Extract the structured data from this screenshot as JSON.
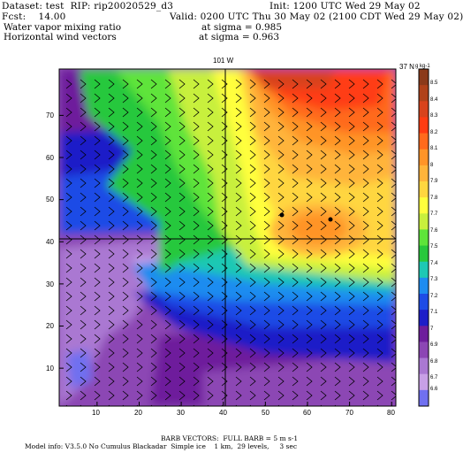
{
  "header": {
    "dataset_label": "Dataset: test  RIP: rip20020529_d3",
    "init_label": "Init: 1200 UTC Wed 29 May 02",
    "fcst_label": "Fcst:    14.00",
    "valid_label": "Valid: 0200 UTC Thu 30 May 02 (2100 CDT Wed 29 May 02)",
    "field1_name": "Water vapor mixing ratio",
    "field1_level": "at sigma = 0.985",
    "field2_name": "Horizontal wind vectors",
    "field2_level": "at sigma = 0.963"
  },
  "map": {
    "lon_line_label": "101 W",
    "lat_line_label": "37 N",
    "x_ticks": [
      "10",
      "20",
      "30",
      "40",
      "50",
      "60",
      "70",
      "80"
    ],
    "y_ticks": [
      "10",
      "20",
      "30",
      "40",
      "50",
      "60",
      "70"
    ]
  },
  "colorbar": {
    "unit_label": "g kg-1",
    "levels": [
      "8.5",
      "8.4",
      "8.3",
      "8.2",
      "8.1",
      "8",
      "7.9",
      "7.8",
      "7.7",
      "7.6",
      "7.5",
      "7.4",
      "7.3",
      "7.2",
      "7.1",
      "7",
      "6.9",
      "6.8",
      "6.7",
      "6.6"
    ],
    "colors": [
      "#8b3a1a",
      "#b0421a",
      "#d8431c",
      "#ff3c12",
      "#ff6a1c",
      "#ff9428",
      "#ffb43a",
      "#ffd640",
      "#ffff3c",
      "#c8f03c",
      "#5ee43a",
      "#28c83c",
      "#1ec8b4",
      "#1e8cf0",
      "#1e4ce6",
      "#1e1ec8",
      "#6e1e9c",
      "#8c46b4",
      "#aa78d2",
      "#c8a0e6",
      "#7070f0"
    ]
  },
  "footer": {
    "barb_label": "BARB VECTORS:  FULL BARB = 5 m s-1",
    "model_info": "Model info: V3.5.0 No Cumulus Blackadar  Simple ice    1 km,  29 levels,     3 sec"
  },
  "colors": {
    "background": "#ffffff",
    "axis": "#000000"
  }
}
